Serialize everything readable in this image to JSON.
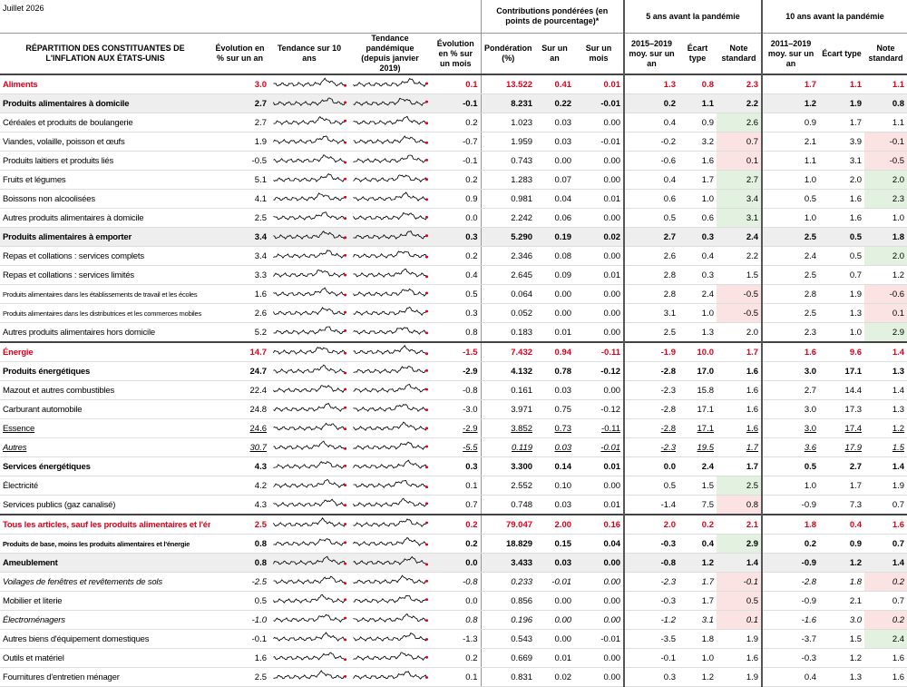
{
  "header": {
    "date": "Juillet 2026",
    "group_contributions": "Contributions pondérées (en points de pourcentage)*",
    "group_5y": "5 ans avant la pandémie",
    "group_10y": "10 ans avant la pandémie"
  },
  "columns": [
    "RÉPARTITION DES CONSTITUANTES DE L'INFLATION AUX ÉTATS-UNIS",
    "Évolution en % sur un an",
    "Tendance sur 10 ans",
    "Tendance pandémique (depuis janvier 2019)",
    "Évolution en % sur un mois",
    "Pondération (%)",
    "Sur un an",
    "Sur un mois",
    "2015–2019 moy. sur un an",
    "Écart type",
    "Note standard",
    "2011–2019 moy. sur un an",
    "Écart type",
    "Note standard"
  ],
  "rows": [
    {
      "label": "Aliments",
      "style": "category",
      "cells": [
        "3.0",
        "0.1",
        "13.522",
        "0.41",
        "0.01",
        "1.3",
        "0.8",
        "2.3",
        "1.7",
        "1.1",
        "1.1"
      ]
    },
    {
      "label": "Produits alimentaires à domicile",
      "style": "subcategory",
      "cells": [
        "2.7",
        "-0.1",
        "8.231",
        "0.22",
        "-0.01",
        "0.2",
        "1.1",
        "2.2",
        "1.2",
        "1.9",
        "0.8"
      ]
    },
    {
      "label": "Céréales et produits de boulangerie",
      "style": "item",
      "cells": [
        "2.7",
        "0.2",
        "1.023",
        "0.03",
        "0.00",
        "0.4",
        "0.9",
        "2.6",
        "0.9",
        "1.7",
        "1.1"
      ]
    },
    {
      "label": "Viandes, volaille, poisson et œufs",
      "style": "item",
      "cells": [
        "1.9",
        "-0.7",
        "1.959",
        "0.03",
        "-0.01",
        "-0.2",
        "3.2",
        "0.7",
        "2.1",
        "3.9",
        "-0.1"
      ]
    },
    {
      "label": "Produits laitiers et produits liés",
      "style": "item",
      "cells": [
        "-0.5",
        "-0.1",
        "0.743",
        "0.00",
        "0.00",
        "-0.6",
        "1.6",
        "0.1",
        "1.1",
        "3.1",
        "-0.5"
      ]
    },
    {
      "label": "Fruits et légumes",
      "style": "item",
      "cells": [
        "5.1",
        "0.2",
        "1.283",
        "0.07",
        "0.00",
        "0.4",
        "1.7",
        "2.7",
        "1.0",
        "2.0",
        "2.0"
      ]
    },
    {
      "label": "Boissons non alcoolisées",
      "style": "item",
      "cells": [
        "4.1",
        "0.9",
        "0.981",
        "0.04",
        "0.01",
        "0.6",
        "1.0",
        "3.4",
        "0.5",
        "1.6",
        "2.3"
      ]
    },
    {
      "label": "Autres produits alimentaires à domicile",
      "style": "item",
      "cells": [
        "2.5",
        "0.0",
        "2.242",
        "0.06",
        "0.00",
        "0.5",
        "0.6",
        "3.1",
        "1.0",
        "1.6",
        "1.0"
      ]
    },
    {
      "label": "Produits alimentaires à emporter",
      "style": "subcategory",
      "cells": [
        "3.4",
        "0.3",
        "5.290",
        "0.19",
        "0.02",
        "2.7",
        "0.3",
        "2.4",
        "2.5",
        "0.5",
        "1.8"
      ]
    },
    {
      "label": "Repas et collations : services complets",
      "style": "item",
      "cells": [
        "3.4",
        "0.2",
        "2.346",
        "0.08",
        "0.00",
        "2.6",
        "0.4",
        "2.2",
        "2.4",
        "0.5",
        "2.0"
      ]
    },
    {
      "label": "Repas et collations : services limités",
      "style": "item",
      "cells": [
        "3.3",
        "0.4",
        "2.645",
        "0.09",
        "0.01",
        "2.8",
        "0.3",
        "1.5",
        "2.5",
        "0.7",
        "1.2"
      ]
    },
    {
      "label": "Produits alimentaires dans les établissements de travail et les écoles",
      "style": "small",
      "cells": [
        "1.6",
        "0.5",
        "0.064",
        "0.00",
        "0.00",
        "2.8",
        "2.4",
        "-0.5",
        "2.8",
        "1.9",
        "-0.6"
      ]
    },
    {
      "label": "Produits alimentaires dans les distributrices et les commerces mobiles",
      "style": "small",
      "cells": [
        "2.6",
        "0.3",
        "0.052",
        "0.00",
        "0.00",
        "3.1",
        "1.0",
        "-0.5",
        "2.5",
        "1.3",
        "0.1"
      ]
    },
    {
      "label": "Autres produits alimentaires hors domicile",
      "style": "item",
      "cells": [
        "5.2",
        "0.8",
        "0.183",
        "0.01",
        "0.00",
        "2.5",
        "1.3",
        "2.0",
        "2.3",
        "1.0",
        "2.9"
      ]
    },
    {
      "label": "Énergie",
      "style": "category",
      "cells": [
        "14.7",
        "-1.5",
        "7.432",
        "0.94",
        "-0.11",
        "-1.9",
        "10.0",
        "1.7",
        "1.6",
        "9.6",
        "1.4"
      ]
    },
    {
      "label": "Produits énergétiques",
      "style": "bold",
      "cells": [
        "24.7",
        "-2.9",
        "4.132",
        "0.78",
        "-0.12",
        "-2.8",
        "17.0",
        "1.6",
        "3.0",
        "17.1",
        "1.3"
      ]
    },
    {
      "label": "Mazout et autres combustibles",
      "style": "item",
      "cells": [
        "22.4",
        "-0.8",
        "0.161",
        "0.03",
        "0.00",
        "-2.3",
        "15.8",
        "1.6",
        "2.7",
        "14.4",
        "1.4"
      ]
    },
    {
      "label": "Carburant automobile",
      "style": "item",
      "cells": [
        "24.8",
        "-3.0",
        "3.971",
        "0.75",
        "-0.12",
        "-2.8",
        "17.1",
        "1.6",
        "3.0",
        "17.3",
        "1.3"
      ]
    },
    {
      "label": "Essence",
      "style": "underline",
      "cells": [
        "24.6",
        "-2.9",
        "3.852",
        "0.73",
        "-0.11",
        "-2.8",
        "17.1",
        "1.6",
        "3.0",
        "17.4",
        "1.2"
      ]
    },
    {
      "label": "Autres",
      "style": "underline-italic",
      "cells": [
        "30.7",
        "-5.5",
        "0.119",
        "0.03",
        "-0.01",
        "-2.3",
        "19.5",
        "1.7",
        "3.6",
        "17.9",
        "1.5"
      ]
    },
    {
      "label": "Services énergétiques",
      "style": "bold",
      "cells": [
        "4.3",
        "0.3",
        "3.300",
        "0.14",
        "0.01",
        "0.0",
        "2.4",
        "1.7",
        "0.5",
        "2.7",
        "1.4"
      ]
    },
    {
      "label": "Électricité",
      "style": "item",
      "cells": [
        "4.2",
        "0.1",
        "2.552",
        "0.10",
        "0.00",
        "0.5",
        "1.5",
        "2.5",
        "1.0",
        "1.7",
        "1.9"
      ]
    },
    {
      "label": "Services publics (gaz canalisé)",
      "style": "item",
      "cells": [
        "4.3",
        "0.7",
        "0.748",
        "0.03",
        "0.01",
        "-1.4",
        "7.5",
        "0.8",
        "-0.9",
        "7.3",
        "0.7"
      ]
    },
    {
      "label": "Tous les articles, sauf les produits alimentaires et l'énergie",
      "style": "category",
      "cells": [
        "2.5",
        "0.2",
        "79.047",
        "2.00",
        "0.16",
        "2.0",
        "0.2",
        "2.1",
        "1.8",
        "0.4",
        "1.6"
      ]
    },
    {
      "label": "Produits de base, moins les produits alimentaires et l'énergie",
      "style": "bold-small",
      "cells": [
        "0.8",
        "0.2",
        "18.829",
        "0.15",
        "0.04",
        "-0.3",
        "0.4",
        "2.9",
        "0.2",
        "0.9",
        "0.7"
      ]
    },
    {
      "label": "Ameublement",
      "style": "subcategory",
      "cells": [
        "0.8",
        "0.0",
        "3.433",
        "0.03",
        "0.00",
        "-0.8",
        "1.2",
        "1.4",
        "-0.9",
        "1.2",
        "1.4"
      ]
    },
    {
      "label": "Voilages de fenêtres et revêtements de sols",
      "style": "italic",
      "cells": [
        "-2.5",
        "-0.8",
        "0.233",
        "-0.01",
        "0.00",
        "-2.3",
        "1.7",
        "-0.1",
        "-2.8",
        "1.8",
        "0.2"
      ]
    },
    {
      "label": "Mobilier et literie",
      "style": "item",
      "cells": [
        "0.5",
        "0.0",
        "0.856",
        "0.00",
        "0.00",
        "-0.3",
        "1.7",
        "0.5",
        "-0.9",
        "2.1",
        "0.7"
      ]
    },
    {
      "label": "Électroménagers",
      "style": "italic",
      "cells": [
        "-1.0",
        "0.8",
        "0.196",
        "0.00",
        "0.00",
        "-1.2",
        "3.1",
        "0.1",
        "-1.6",
        "3.0",
        "0.2"
      ]
    },
    {
      "label": "Autres biens d'équipement domestiques",
      "style": "item",
      "cells": [
        "-0.1",
        "-1.3",
        "0.543",
        "0.00",
        "-0.01",
        "-3.5",
        "1.8",
        "1.9",
        "-3.7",
        "1.5",
        "2.4"
      ]
    },
    {
      "label": "Outils et matériel",
      "style": "item",
      "cells": [
        "1.6",
        "0.2",
        "0.669",
        "0.01",
        "0.00",
        "-0.1",
        "1.0",
        "1.6",
        "-0.3",
        "1.2",
        "1.6"
      ]
    },
    {
      "label": "Fournitures d'entretien ménager",
      "style": "item",
      "cells": [
        "2.5",
        "0.1",
        "0.831",
        "0.02",
        "0.00",
        "0.3",
        "1.2",
        "1.9",
        "0.4",
        "1.3",
        "1.6"
      ]
    }
  ]
}
